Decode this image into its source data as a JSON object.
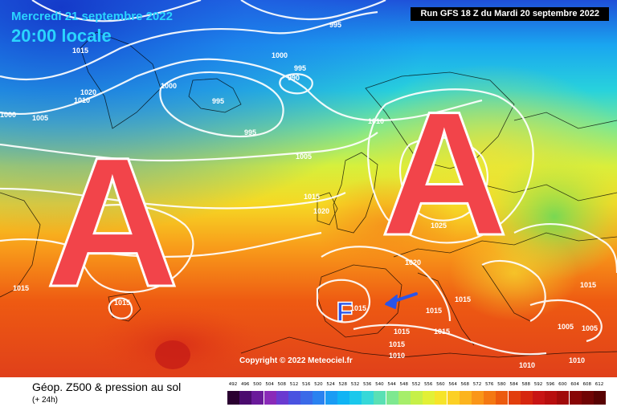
{
  "header": {
    "date": "Mercredi 21 septembre 2022",
    "time": "20:00 locale",
    "run": "Run GFS 18 Z du Mardi 20 septembre 2022"
  },
  "map": {
    "high_symbol": "A",
    "low_symbol": "F",
    "copyright": "Copyright © 2022 Meteociel.fr",
    "isobar_labels": [
      "995",
      "1015",
      "1020",
      "1000",
      "995",
      "990",
      "1000",
      "1010",
      "995",
      "1005",
      "995",
      "1000",
      "1010",
      "1005",
      "1015",
      "1020",
      "1025",
      "1020",
      "1015",
      "1015",
      "1015",
      "1015",
      "1015",
      "1015",
      "1010",
      "1015",
      "1015",
      "1005",
      "1005",
      "1010",
      "1010",
      "1015"
    ]
  },
  "legend": {
    "title": "Géop. Z500 & pression au sol",
    "subtitle": "(+ 24h)",
    "scale_values": [
      "492",
      "496",
      "500",
      "504",
      "508",
      "512",
      "516",
      "520",
      "524",
      "528",
      "532",
      "536",
      "540",
      "544",
      "548",
      "552",
      "556",
      "560",
      "564",
      "568",
      "572",
      "576",
      "580",
      "584",
      "588",
      "592",
      "596",
      "600",
      "604",
      "608",
      "612"
    ],
    "scale_colors": [
      "#2a0030",
      "#4b0b6e",
      "#6a1a9a",
      "#8a2ab8",
      "#6a3ad0",
      "#4a52e0",
      "#3a6ae8",
      "#2a82f0",
      "#1a9cf4",
      "#10b4f4",
      "#1ac8ec",
      "#36d8d8",
      "#5ae0b4",
      "#7ee890",
      "#a6ee6a",
      "#c6f048",
      "#e2f036",
      "#f6e42a",
      "#fcd024",
      "#fcb41e",
      "#fa9618",
      "#f47812",
      "#ec5a0e",
      "#e23e0c",
      "#d6260e",
      "#c81414",
      "#b80e0e",
      "#a00a0a",
      "#880606",
      "#700404",
      "#580202"
    ]
  },
  "colors": {
    "accent_cyan": "#2ad4ff",
    "high_red": "#f2444a",
    "low_blue": "#2a54e8"
  }
}
